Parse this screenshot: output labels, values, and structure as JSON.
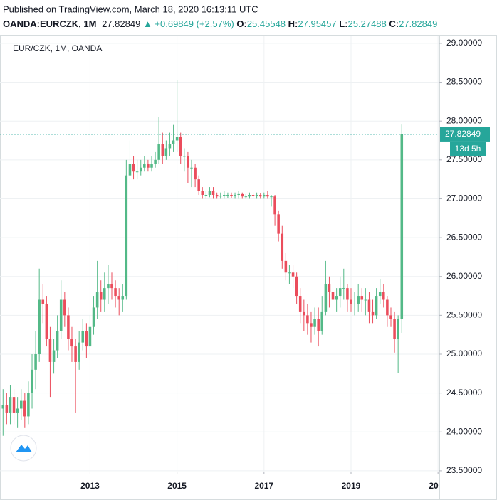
{
  "chart_data": {
    "type": "candlestick",
    "title": "EUR/CZK, 1M, OANDA",
    "published": "Published on TradingView.com, March 18, 2020 16:13:11 UTC",
    "symbol": "OANDA:EURCZK, 1M",
    "change": "▲ +0.69849 (+2.57%)",
    "ohlc_labels": [
      "O:",
      "H:",
      "L:",
      "C:"
    ],
    "last_price": 27.82849,
    "countdown": "13d 5h",
    "up_color": "#53b987",
    "down_color": "#eb4d5c",
    "grid": true,
    "xlim": [
      2010.93,
      2021.03
    ],
    "xticks": [
      2013,
      2015,
      2017,
      2019,
      {
        "value": 2021,
        "label": "20"
      }
    ],
    "ylim": [
      23.49,
      29.1
    ],
    "yticks": [
      {
        "value": 23.5,
        "label": "23.50000"
      },
      {
        "value": 24,
        "label": "24.00000"
      },
      {
        "value": 24.5,
        "label": "24.50000"
      },
      {
        "value": 25,
        "label": "25.00000"
      },
      {
        "value": 25.5,
        "label": "25.50000"
      },
      {
        "value": 26,
        "label": "26.00000"
      },
      {
        "value": 26.5,
        "label": "26.50000"
      },
      {
        "value": 27,
        "label": "27.00000"
      },
      {
        "value": 27.5,
        "label": "27.50000"
      },
      {
        "value": 28,
        "label": "28.00000"
      },
      {
        "value": 28.5,
        "label": "28.50000"
      },
      {
        "value": 29,
        "label": "29.00000"
      }
    ],
    "x": [
      2011,
      2011.083,
      2011.167,
      2011.25,
      2011.333,
      2011.417,
      2011.5,
      2011.583,
      2011.667,
      2011.75,
      2011.833,
      2011.917,
      2012,
      2012.083,
      2012.167,
      2012.25,
      2012.333,
      2012.417,
      2012.5,
      2012.583,
      2012.667,
      2012.75,
      2012.833,
      2012.917,
      2013,
      2013.083,
      2013.167,
      2013.25,
      2013.333,
      2013.417,
      2013.5,
      2013.583,
      2013.667,
      2013.75,
      2013.833,
      2013.917,
      2014,
      2014.083,
      2014.167,
      2014.25,
      2014.333,
      2014.417,
      2014.5,
      2014.583,
      2014.667,
      2014.75,
      2014.833,
      2014.917,
      2015,
      2015.083,
      2015.167,
      2015.25,
      2015.333,
      2015.417,
      2015.5,
      2015.583,
      2015.667,
      2015.75,
      2015.833,
      2015.917,
      2016,
      2016.083,
      2016.167,
      2016.25,
      2016.333,
      2016.417,
      2016.5,
      2016.583,
      2016.667,
      2016.75,
      2016.833,
      2016.917,
      2017,
      2017.083,
      2017.167,
      2017.25,
      2017.333,
      2017.417,
      2017.5,
      2017.583,
      2017.667,
      2017.75,
      2017.833,
      2017.917,
      2018,
      2018.083,
      2018.167,
      2018.25,
      2018.333,
      2018.417,
      2018.5,
      2018.583,
      2018.667,
      2018.75,
      2018.833,
      2018.917,
      2019,
      2019.083,
      2019.167,
      2019.25,
      2019.333,
      2019.417,
      2019.5,
      2019.583,
      2019.667,
      2019.75,
      2019.833,
      2019.917,
      2020,
      2020.083,
      2020.167
    ],
    "open": [
      24.3,
      24.35,
      24.25,
      24.45,
      24.25,
      24.3,
      24.4,
      24.2,
      24.5,
      24.8,
      25.0,
      25.7,
      25.65,
      25.2,
      24.9,
      25.05,
      25.3,
      25.7,
      25.5,
      25.2,
      25.1,
      24.9,
      25.15,
      25.3,
      25.1,
      25.35,
      25.6,
      25.8,
      25.7,
      25.85,
      25.9,
      25.85,
      25.75,
      25.7,
      25.75,
      27.3,
      27.45,
      27.35,
      27.35,
      27.4,
      27.45,
      27.4,
      27.45,
      27.5,
      27.7,
      27.55,
      27.65,
      27.7,
      27.75,
      27.8,
      27.55,
      27.55,
      27.4,
      27.4,
      27.25,
      27.1,
      27.05,
      27.05,
      27.1,
      27.05,
      27.03,
      27.04,
      27.05,
      27.05,
      27.04,
      27.05,
      27.06,
      27.03,
      27.03,
      27.05,
      27.04,
      27.05,
      27.03,
      27.05,
      27.03,
      27.03,
      26.8,
      26.55,
      26.2,
      26.05,
      26.05,
      26.0,
      25.75,
      25.55,
      25.5,
      25.4,
      25.35,
      25.45,
      25.3,
      25.55,
      25.9,
      25.8,
      25.7,
      25.75,
      25.85,
      25.85,
      25.7,
      25.65,
      25.65,
      25.75,
      25.7,
      25.7,
      25.55,
      25.5,
      25.75,
      25.8,
      25.7,
      25.5,
      25.45,
      25.2,
      25.45548
    ],
    "high": [
      24.55,
      24.5,
      24.6,
      24.55,
      24.45,
      24.55,
      24.5,
      24.65,
      25.0,
      25.3,
      26.1,
      25.9,
      25.75,
      25.35,
      25.2,
      25.5,
      25.95,
      25.8,
      25.6,
      25.35,
      25.2,
      25.3,
      25.45,
      25.4,
      25.5,
      25.75,
      26.2,
      25.95,
      26.05,
      26.15,
      26.05,
      25.95,
      25.85,
      25.9,
      27.5,
      27.75,
      27.55,
      27.5,
      27.5,
      27.55,
      27.5,
      27.55,
      27.6,
      28.05,
      27.85,
      27.75,
      27.85,
      27.95,
      28.53,
      27.85,
      27.65,
      27.6,
      27.5,
      27.45,
      27.3,
      27.15,
      27.1,
      27.15,
      27.15,
      27.08,
      27.08,
      27.1,
      27.08,
      27.08,
      27.08,
      27.1,
      27.08,
      27.06,
      27.08,
      27.08,
      27.08,
      27.07,
      27.08,
      27.1,
      27.05,
      27.05,
      26.85,
      26.65,
      26.3,
      26.15,
      26.15,
      26.05,
      25.85,
      25.7,
      25.65,
      25.55,
      25.6,
      25.6,
      25.75,
      26.2,
      26.0,
      25.95,
      25.85,
      26.0,
      26.1,
      25.9,
      25.85,
      25.8,
      25.9,
      25.85,
      25.85,
      25.8,
      25.7,
      25.85,
      25.97,
      25.9,
      25.75,
      25.6,
      25.55,
      25.5,
      27.95457
    ],
    "low": [
      23.95,
      24.1,
      24.1,
      24.1,
      24.05,
      24.15,
      24.05,
      24.1,
      24.3,
      24.55,
      24.9,
      25.4,
      25.1,
      24.45,
      24.75,
      24.95,
      25.2,
      25.35,
      25.05,
      24.9,
      24.25,
      24.8,
      25.05,
      24.95,
      25.0,
      25.25,
      25.45,
      25.55,
      25.55,
      25.65,
      25.7,
      25.6,
      25.5,
      25.55,
      25.7,
      27.2,
      27.25,
      27.25,
      27.3,
      27.35,
      27.35,
      27.35,
      27.4,
      27.45,
      27.45,
      27.5,
      27.55,
      27.6,
      27.6,
      27.45,
      27.35,
      27.2,
      27.15,
      27.15,
      27.05,
      27.0,
      27.0,
      27.02,
      27.0,
      27.0,
      27.0,
      27.0,
      27.01,
      27.01,
      27.0,
      27.0,
      27.0,
      27.0,
      27.0,
      27.01,
      27.0,
      27.0,
      27.0,
      27.0,
      26.9,
      26.65,
      26.45,
      26.1,
      25.95,
      25.9,
      25.85,
      25.65,
      25.4,
      25.3,
      25.25,
      25.15,
      25.25,
      25.1,
      25.25,
      25.5,
      25.6,
      25.55,
      25.55,
      25.6,
      25.7,
      25.55,
      25.55,
      25.5,
      25.55,
      25.55,
      25.5,
      25.4,
      25.4,
      25.45,
      25.65,
      25.6,
      25.35,
      25.35,
      25.02,
      24.76,
      25.27488
    ],
    "close": [
      24.35,
      24.25,
      24.45,
      24.25,
      24.3,
      24.4,
      24.2,
      24.5,
      24.8,
      25.0,
      25.7,
      25.65,
      25.2,
      24.9,
      25.05,
      25.3,
      25.7,
      25.5,
      25.2,
      25.1,
      24.9,
      25.15,
      25.3,
      25.1,
      25.35,
      25.6,
      25.8,
      25.7,
      25.85,
      25.9,
      25.85,
      25.75,
      25.7,
      25.75,
      27.3,
      27.45,
      27.35,
      27.35,
      27.4,
      27.45,
      27.4,
      27.45,
      27.5,
      27.7,
      27.55,
      27.65,
      27.7,
      27.75,
      27.8,
      27.55,
      27.55,
      27.4,
      27.4,
      27.25,
      27.1,
      27.05,
      27.05,
      27.1,
      27.05,
      27.03,
      27.04,
      27.05,
      27.05,
      27.04,
      27.05,
      27.06,
      27.03,
      27.03,
      27.05,
      27.04,
      27.05,
      27.03,
      27.05,
      27.03,
      27.03,
      26.8,
      26.55,
      26.2,
      26.05,
      26.05,
      26.0,
      25.75,
      25.55,
      25.5,
      25.4,
      25.35,
      25.45,
      25.3,
      25.55,
      25.9,
      25.8,
      25.7,
      25.75,
      25.85,
      25.85,
      25.7,
      25.65,
      25.65,
      25.75,
      25.7,
      25.7,
      25.55,
      25.5,
      25.75,
      25.8,
      25.7,
      25.5,
      25.45,
      25.2,
      25.45548,
      27.82849
    ]
  }
}
